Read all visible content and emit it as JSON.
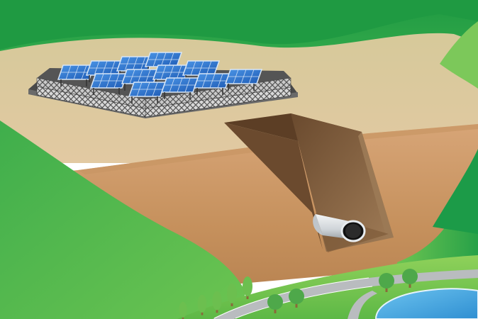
{
  "scene": {
    "subjects": [
      "solar-panel-array",
      "excavation-trench",
      "drainage-pipe",
      "green-hills",
      "trees",
      "road",
      "pond"
    ]
  },
  "colors": {
    "sky_hill": "#2fa84f",
    "far_hill": "#5cba49",
    "plateau": "#d8c99a",
    "soil_light": "#d8a06b",
    "soil_mid": "#c28a55",
    "soil_dark": "#6f4a2c",
    "trench_wall": "#8a6a48",
    "panel_blue": "#2c6fc9",
    "panel_frame": "#d7e6f7",
    "fence": "#7a7a7a",
    "road": "#b9bcbf",
    "pond": "#4aa8e0",
    "pipe": "#d9dde0",
    "tree_leaf": "#4ea84a",
    "tree_trunk": "#8a6a3a"
  }
}
